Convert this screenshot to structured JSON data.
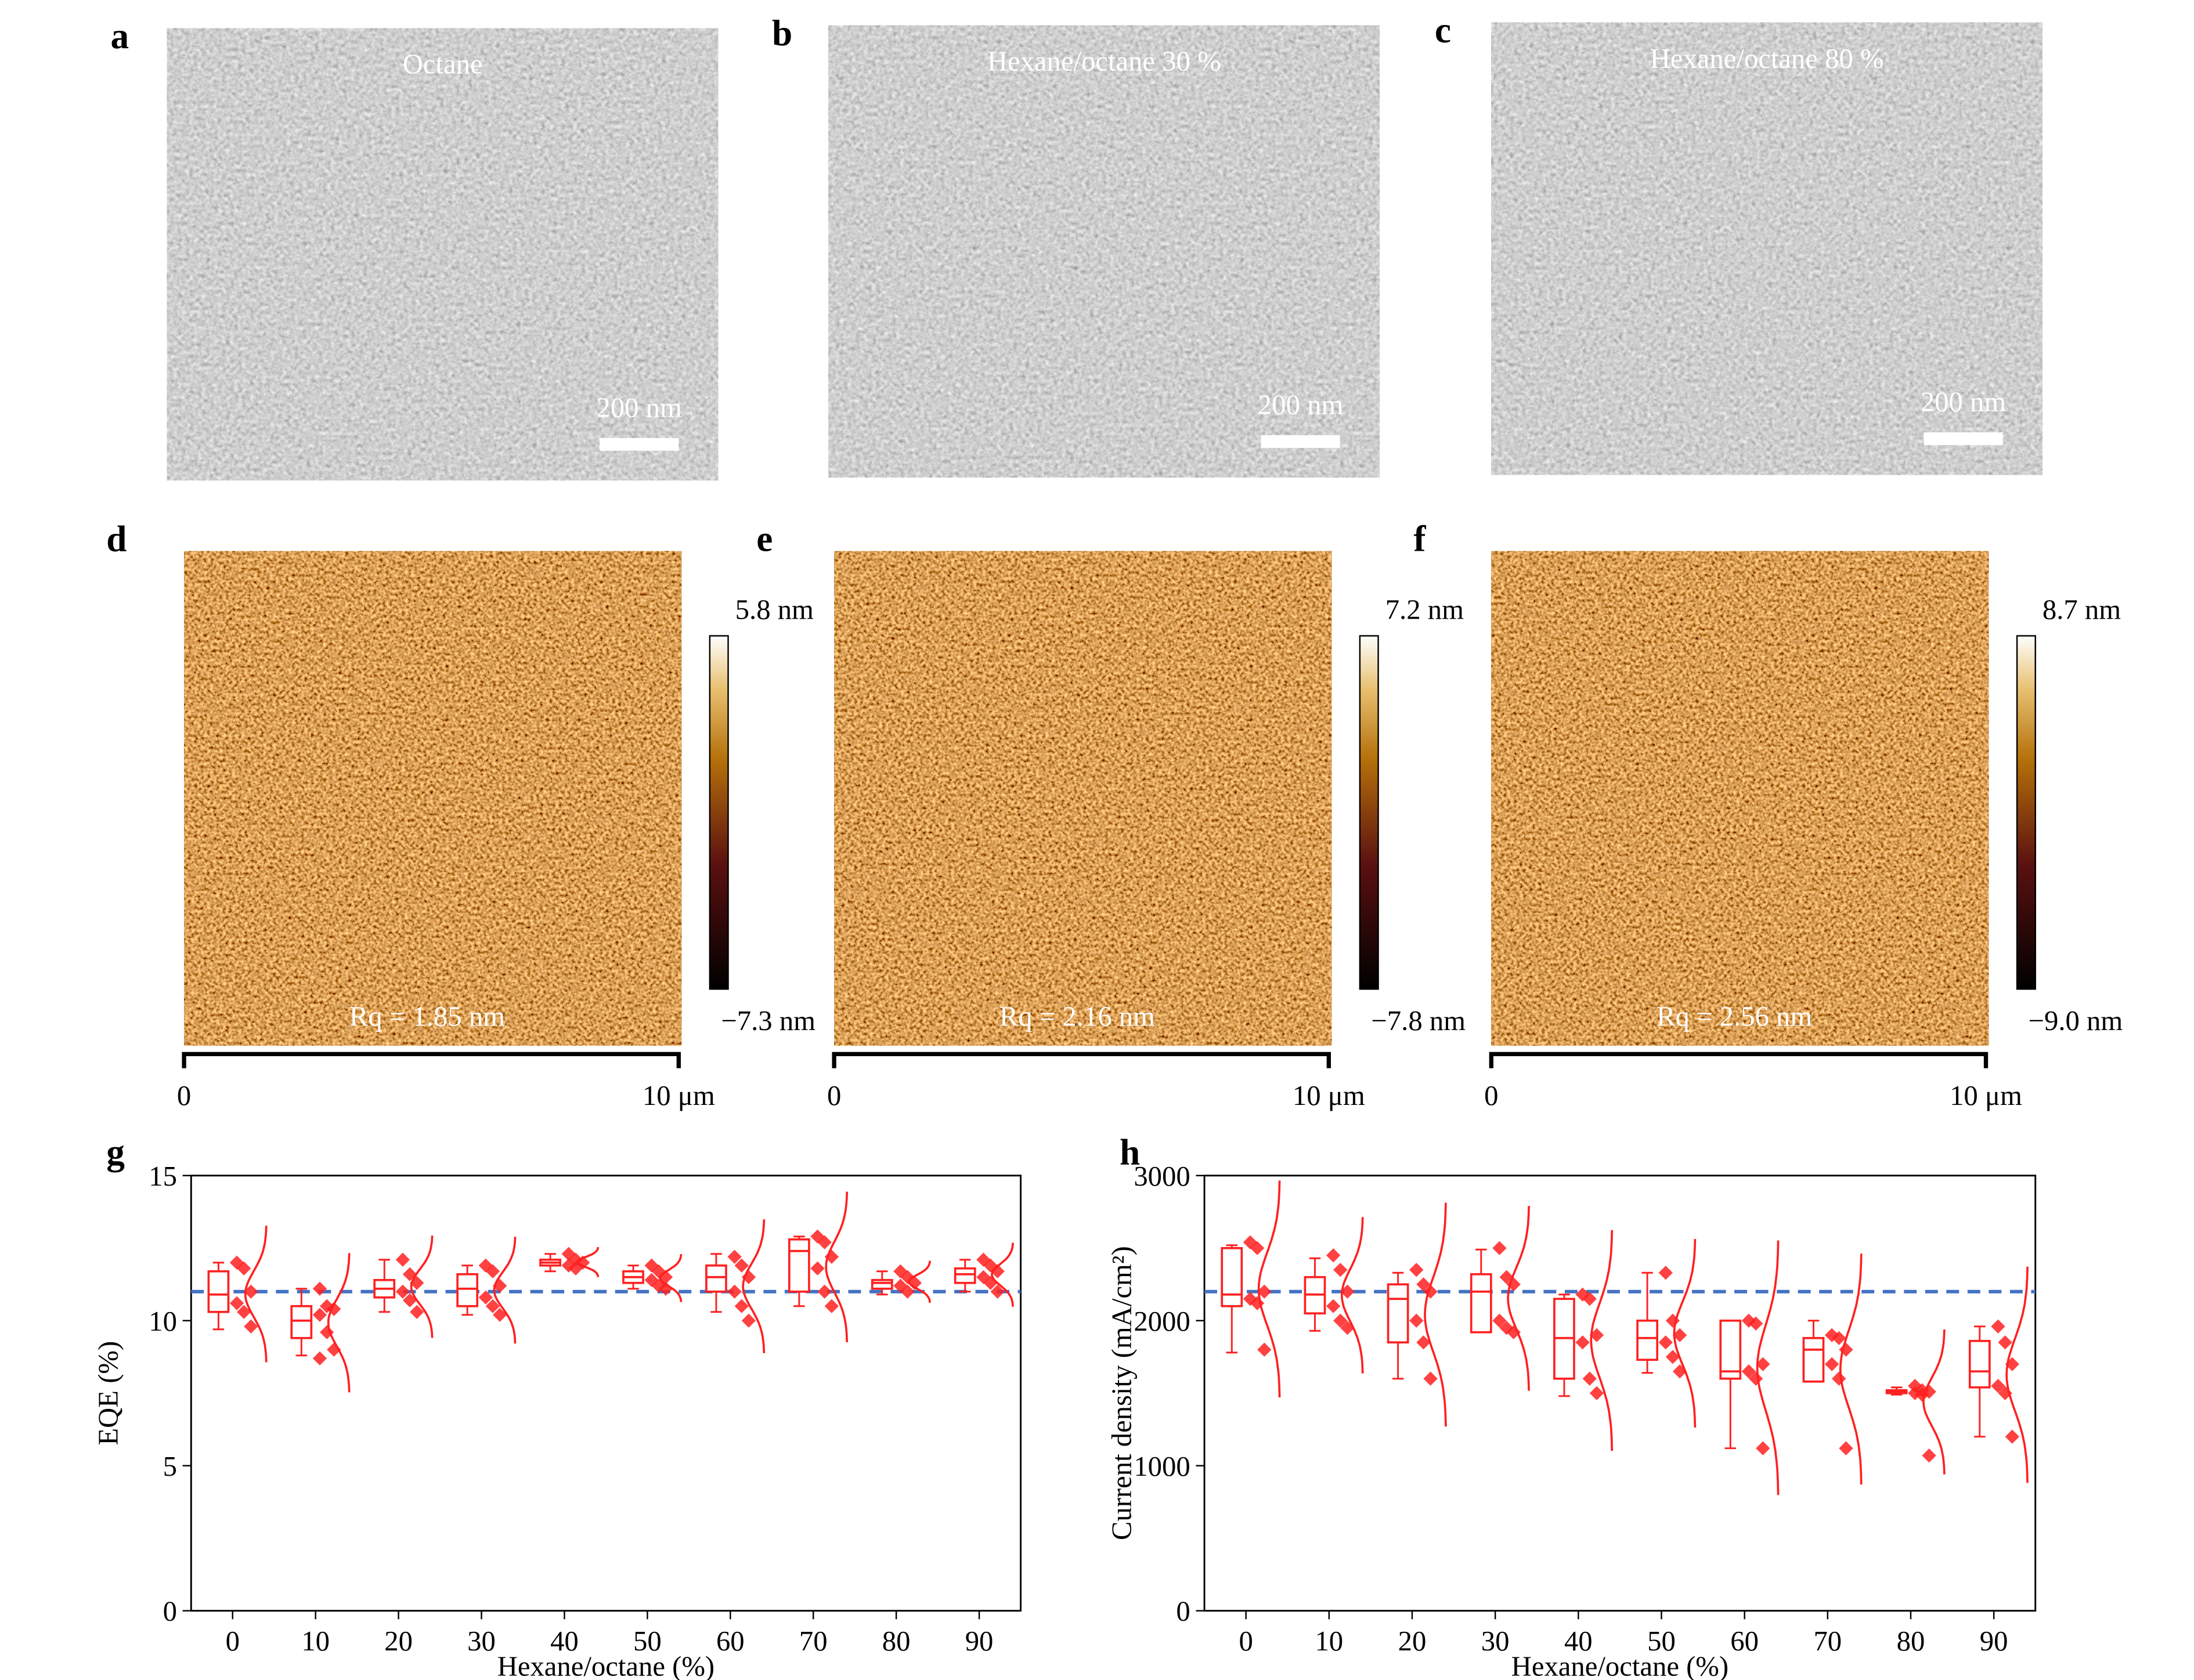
{
  "sem_panels": [
    {
      "label": "a",
      "caption": "Octane",
      "scale_bar": "200 nm"
    },
    {
      "label": "b",
      "caption": "Hexane/octane 30 %",
      "scale_bar": "200 nm"
    },
    {
      "label": "c",
      "caption": "Hexane/octane 80 %",
      "scale_bar": "200 nm"
    }
  ],
  "afm_panels": [
    {
      "label": "d",
      "max": "5.8 nm",
      "min": "−7.3 nm",
      "rq": "Rq = 1.85 nm",
      "axis_start": "0",
      "axis_end": "10 μm"
    },
    {
      "label": "e",
      "max": "7.2 nm",
      "min": "−7.8 nm",
      "rq": "Rq = 2.16 nm",
      "axis_start": "0",
      "axis_end": "10 μm"
    },
    {
      "label": "f",
      "max": "8.7 nm",
      "min": "−9.0 nm",
      "rq": "Rq = 2.56 nm",
      "axis_start": "0",
      "axis_end": "10 μm"
    }
  ],
  "chart_data": [
    {
      "type": "box",
      "panel_label": "g",
      "x_label": "Hexane/octane (%)",
      "y_label": "EQE (%)",
      "categories": [
        "0",
        "10",
        "20",
        "30",
        "40",
        "50",
        "60",
        "70",
        "80",
        "90"
      ],
      "ylim": [
        0,
        15
      ],
      "yticks": [
        0,
        5,
        10,
        15
      ],
      "color": "#ff2020",
      "reference_line": 11,
      "reference_color": "#4472c4",
      "whisker_low": [
        9.7,
        8.8,
        10.3,
        10.2,
        11.7,
        11.1,
        10.3,
        10.5,
        10.9,
        11.0
      ],
      "q1": [
        10.3,
        9.4,
        10.8,
        10.5,
        11.9,
        11.3,
        11.0,
        11.0,
        11.1,
        11.3
      ],
      "median": [
        10.9,
        10.0,
        11.1,
        11.1,
        12.0,
        11.5,
        11.5,
        12.4,
        11.3,
        11.6
      ],
      "q3": [
        11.7,
        10.5,
        11.4,
        11.6,
        12.1,
        11.7,
        11.9,
        12.8,
        11.4,
        11.8
      ],
      "whisker_high": [
        12.0,
        11.1,
        12.1,
        11.9,
        12.3,
        11.9,
        12.3,
        12.9,
        11.7,
        12.1
      ],
      "points": [
        [
          12.0,
          11.8,
          11.0,
          10.6,
          10.3,
          9.8
        ],
        [
          11.1,
          10.5,
          10.4,
          10.2,
          9.6,
          9.0,
          8.7
        ],
        [
          12.1,
          11.6,
          11.3,
          11.0,
          10.7,
          10.3
        ],
        [
          11.9,
          11.7,
          11.2,
          10.8,
          10.5,
          10.2
        ],
        [
          12.3,
          12.1,
          12.0,
          11.9,
          11.8
        ],
        [
          11.9,
          11.7,
          11.5,
          11.4,
          11.2,
          11.1
        ],
        [
          12.2,
          11.9,
          11.5,
          11.0,
          10.5,
          10.0
        ],
        [
          12.9,
          12.7,
          12.2,
          11.8,
          11.0,
          10.5
        ],
        [
          11.7,
          11.5,
          11.3,
          11.2,
          11.0
        ],
        [
          12.1,
          11.9,
          11.7,
          11.5,
          11.3,
          11.0
        ]
      ]
    },
    {
      "type": "box",
      "panel_label": "h",
      "x_label": "Hexane/octane (%)",
      "y_label": "Current density (mA/cm²)",
      "categories": [
        "0",
        "10",
        "20",
        "30",
        "40",
        "50",
        "60",
        "70",
        "80",
        "90"
      ],
      "ylim": [
        0,
        3000
      ],
      "yticks": [
        0,
        1000,
        2000,
        3000
      ],
      "color": "#ff2020",
      "reference_line": 2200,
      "reference_color": "#4472c4",
      "whisker_low": [
        1780,
        1930,
        1600,
        1920,
        1480,
        1640,
        1120,
        1580,
        1490,
        1200
      ],
      "q1": [
        2100,
        2050,
        1850,
        1920,
        1600,
        1730,
        1600,
        1580,
        1500,
        1540
      ],
      "median": [
        2180,
        2180,
        2150,
        2200,
        1880,
        1880,
        1650,
        1800,
        1510,
        1650
      ],
      "q3": [
        2500,
        2300,
        2250,
        2320,
        2150,
        2000,
        2000,
        1880,
        1520,
        1860
      ],
      "whisker_high": [
        2520,
        2430,
        2330,
        2490,
        2180,
        2330,
        2000,
        2000,
        1540,
        1960
      ],
      "points": [
        [
          2540,
          2500,
          2200,
          2150,
          2120,
          1800
        ],
        [
          2450,
          2350,
          2200,
          2100,
          2000,
          1950
        ],
        [
          2350,
          2250,
          2200,
          2000,
          1850,
          1600
        ],
        [
          2500,
          2300,
          2250,
          2000,
          1950,
          1920
        ],
        [
          2180,
          2150,
          1900,
          1850,
          1600,
          1500
        ],
        [
          2330,
          2000,
          1900,
          1850,
          1750,
          1650
        ],
        [
          2000,
          1980,
          1700,
          1650,
          1600,
          1120
        ],
        [
          1900,
          1880,
          1800,
          1700,
          1600,
          1120
        ],
        [
          1550,
          1520,
          1510,
          1500,
          1490,
          1070
        ],
        [
          1960,
          1850,
          1700,
          1550,
          1500,
          1200
        ]
      ]
    }
  ]
}
